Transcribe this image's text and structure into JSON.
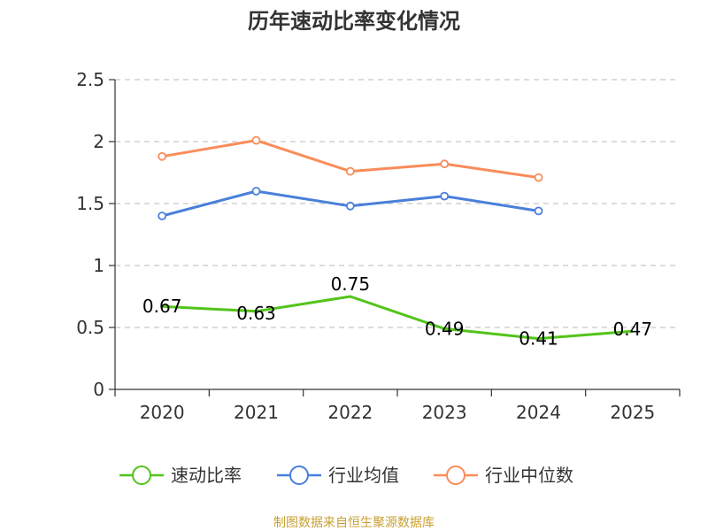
{
  "chart_data": {
    "type": "line",
    "title": "历年速动比率变化情况",
    "categories": [
      "2020",
      "2021",
      "2022",
      "2023",
      "2024",
      "2025"
    ],
    "ylim": [
      0,
      2.5
    ],
    "yticks": [
      "0",
      "0.5",
      "1",
      "1.5",
      "2",
      "2.5"
    ],
    "grid": true,
    "legend_position": "bottom",
    "series": [
      {
        "name": "速动比率",
        "color": "#52c41a",
        "values": [
          0.67,
          0.63,
          0.75,
          0.49,
          0.41,
          0.47
        ],
        "labels": [
          "0.67",
          "0.63",
          "0.75",
          "0.49",
          "0.41",
          "0.47"
        ]
      },
      {
        "name": "行业均值",
        "color": "#4a7fdb",
        "values": [
          1.4,
          1.6,
          1.48,
          1.56,
          1.44,
          null
        ]
      },
      {
        "name": "行业中位数",
        "color": "#f98c5a",
        "values": [
          1.88,
          2.01,
          1.76,
          1.82,
          1.71,
          null
        ]
      }
    ],
    "source": "制图数据来自恒生聚源数据库"
  }
}
